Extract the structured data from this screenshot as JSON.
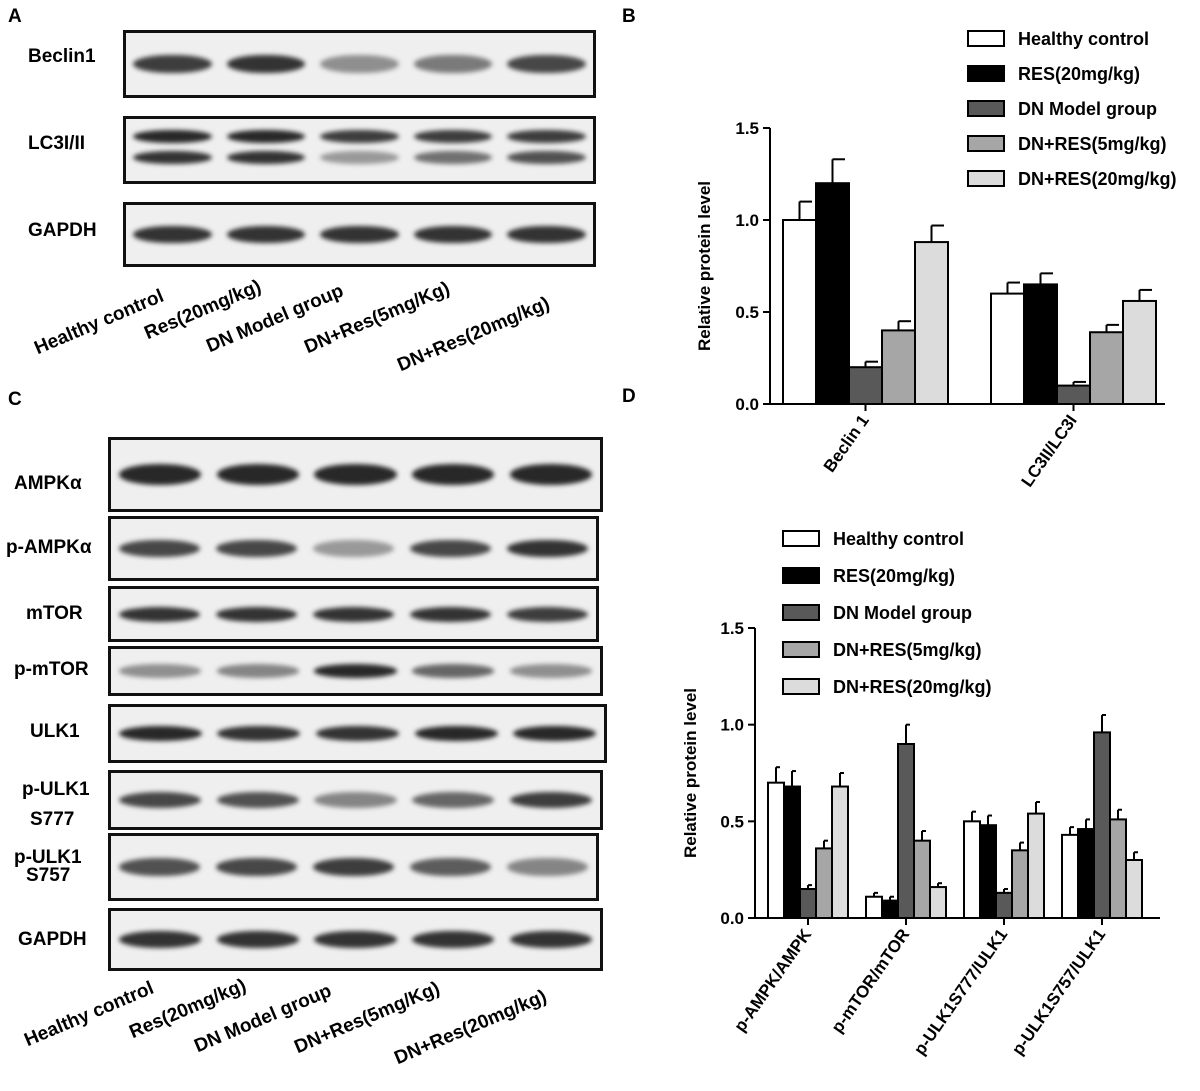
{
  "panels": {
    "a": "A",
    "b": "B",
    "c": "C",
    "d": "D"
  },
  "blot_a": {
    "rows": [
      {
        "label": "Beclin1",
        "intensity": [
          0.85,
          0.9,
          0.45,
          0.55,
          0.8
        ]
      },
      {
        "label": "LC3I/II",
        "intensity": [
          0.95,
          0.95,
          0.85,
          0.85,
          0.85
        ],
        "second": [
          0.9,
          0.9,
          0.4,
          0.6,
          0.75
        ]
      },
      {
        "label": "GAPDH",
        "intensity": [
          0.9,
          0.9,
          0.9,
          0.9,
          0.9
        ]
      }
    ],
    "lanes": [
      "Healthy control",
      "Res(20mg/kg)",
      "DN Model group",
      "DN+Res(5mg/Kg)",
      "DN+Res(20mg/kg)"
    ]
  },
  "blot_c": {
    "rows": [
      {
        "label": "AMPKα",
        "intensity": [
          0.95,
          0.95,
          0.95,
          0.95,
          0.95
        ]
      },
      {
        "label": "p-AMPKα",
        "intensity": [
          0.8,
          0.8,
          0.4,
          0.8,
          0.9
        ]
      },
      {
        "label": "mTOR",
        "intensity": [
          0.9,
          0.9,
          0.9,
          0.9,
          0.85
        ]
      },
      {
        "label": "p-mTOR",
        "intensity": [
          0.45,
          0.5,
          0.95,
          0.65,
          0.45
        ]
      },
      {
        "label": "ULK1",
        "intensity": [
          0.95,
          0.9,
          0.9,
          0.95,
          0.95
        ]
      },
      {
        "label": "p-ULK1",
        "label2": "S777",
        "intensity": [
          0.8,
          0.75,
          0.5,
          0.65,
          0.85
        ]
      },
      {
        "label": "p-ULK1",
        "label2": "S757",
        "intensity": [
          0.75,
          0.8,
          0.85,
          0.7,
          0.5
        ]
      },
      {
        "label": "GAPDH",
        "intensity": [
          0.9,
          0.9,
          0.9,
          0.9,
          0.9
        ]
      }
    ],
    "lanes": [
      "Healthy control",
      "Res(20mg/kg)",
      "DN Model group",
      "DN+Res(5mg/Kg)",
      "DN+Res(20mg/kg)"
    ]
  },
  "chart_data": [
    {
      "type": "bar",
      "panel": "B",
      "ylabel": "Relative protein level",
      "ylim": [
        0,
        1.5
      ],
      "yticks": [
        "0.0",
        "0.5",
        "1.0",
        "1.5"
      ],
      "categories": [
        "Beclin 1",
        "LC3II/LC3I"
      ],
      "series": [
        {
          "name": "Healthy control",
          "color": "#ffffff",
          "values": [
            1.0,
            0.6
          ],
          "errors": [
            0.1,
            0.06
          ]
        },
        {
          "name": "RES(20mg/kg)",
          "color": "#000000",
          "values": [
            1.2,
            0.65
          ],
          "errors": [
            0.13,
            0.06
          ]
        },
        {
          "name": "DN Model group",
          "color": "#595959",
          "values": [
            0.2,
            0.1
          ],
          "errors": [
            0.03,
            0.02
          ]
        },
        {
          "name": "DN+RES(5mg/kg)",
          "color": "#a6a6a6",
          "values": [
            0.4,
            0.39
          ],
          "errors": [
            0.05,
            0.04
          ]
        },
        {
          "name": "DN+RES(20mg/kg)",
          "color": "#dcdcdc",
          "values": [
            0.88,
            0.56
          ],
          "errors": [
            0.09,
            0.06
          ]
        }
      ],
      "legend": "top-right"
    },
    {
      "type": "bar",
      "panel": "D",
      "ylabel": "Relative protein level",
      "ylim": [
        0,
        1.5
      ],
      "yticks": [
        "0.0",
        "0.5",
        "1.0",
        "1.5"
      ],
      "categories": [
        "p-AMPK/AMPK",
        "p-mTOR/mTOR",
        "p-ULK1S777/ULK1",
        "p-ULK1S757/ULK1"
      ],
      "series": [
        {
          "name": "Healthy control",
          "color": "#ffffff",
          "values": [
            0.7,
            0.11,
            0.5,
            0.43
          ],
          "errors": [
            0.08,
            0.02,
            0.05,
            0.04
          ]
        },
        {
          "name": "RES(20mg/kg)",
          "color": "#000000",
          "values": [
            0.68,
            0.09,
            0.48,
            0.46
          ],
          "errors": [
            0.08,
            0.02,
            0.05,
            0.05
          ]
        },
        {
          "name": "DN Model group",
          "color": "#595959",
          "values": [
            0.15,
            0.9,
            0.13,
            0.96
          ],
          "errors": [
            0.02,
            0.1,
            0.02,
            0.09
          ]
        },
        {
          "name": "DN+RES(5mg/kg)",
          "color": "#a6a6a6",
          "values": [
            0.36,
            0.4,
            0.35,
            0.51
          ],
          "errors": [
            0.04,
            0.05,
            0.04,
            0.05
          ]
        },
        {
          "name": "DN+RES(20mg/kg)",
          "color": "#dcdcdc",
          "values": [
            0.68,
            0.16,
            0.54,
            0.3
          ],
          "errors": [
            0.07,
            0.02,
            0.06,
            0.04
          ]
        }
      ],
      "legend": "top-right"
    }
  ]
}
